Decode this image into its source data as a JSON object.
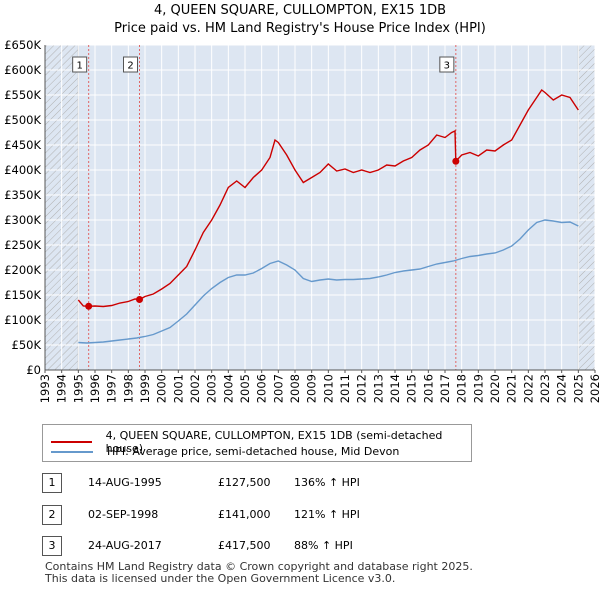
{
  "title_line1": "4, QUEEN SQUARE, CULLOMPTON, EX15 1DB",
  "title_line2": "Price paid vs. HM Land Registry's House Price Index (HPI)",
  "legend": {
    "property_label": "4, QUEEN SQUARE, CULLOMPTON, EX15 1DB (semi-detached house)",
    "hpi_label": "HPI: Average price, semi-detached house, Mid Devon"
  },
  "transactions": [
    {
      "num": "1",
      "date": "14-AUG-1995",
      "price": "£127,500",
      "hpi": "136% ↑ HPI"
    },
    {
      "num": "2",
      "date": "02-SEP-1998",
      "price": "£141,000",
      "hpi": "121% ↑ HPI"
    },
    {
      "num": "3",
      "date": "24-AUG-2017",
      "price": "£417,500",
      "hpi": "88% ↑ HPI"
    }
  ],
  "footer_line1": "Contains HM Land Registry data © Crown copyright and database right 2025.",
  "footer_line2": "This data is licensed under the Open Government Licence v3.0.",
  "colors": {
    "property": "#cc0000",
    "hpi": "#6699cc",
    "band": "#dde6f2",
    "grid": "#d0d0d0"
  },
  "chart_data": {
    "type": "line",
    "xlim": [
      1993,
      2026
    ],
    "ylim": [
      0,
      650000
    ],
    "y_ticks": [
      0,
      50000,
      100000,
      150000,
      200000,
      250000,
      300000,
      350000,
      400000,
      450000,
      500000,
      550000,
      600000,
      650000
    ],
    "y_tick_labels": [
      "£0",
      "£50K",
      "£100K",
      "£150K",
      "£200K",
      "£250K",
      "£300K",
      "£350K",
      "£400K",
      "£450K",
      "£500K",
      "£550K",
      "£600K",
      "£650K"
    ],
    "x_ticks": [
      1993,
      1994,
      1995,
      1996,
      1997,
      1998,
      1999,
      2000,
      2001,
      2002,
      2003,
      2004,
      2005,
      2006,
      2007,
      2008,
      2009,
      2010,
      2011,
      2012,
      2013,
      2014,
      2015,
      2016,
      2017,
      2018,
      2019,
      2020,
      2021,
      2022,
      2023,
      2024,
      2025,
      2026
    ],
    "x_tick_labels": [
      "1993",
      "1994",
      "1995",
      "1996",
      "1997",
      "1998",
      "1999",
      "2000",
      "2001",
      "2002",
      "2003",
      "2004",
      "2005",
      "2006",
      "2007",
      "2008",
      "2009",
      "2010",
      "2011",
      "2012",
      "2013",
      "2014",
      "2015",
      "2016",
      "2017",
      "2018",
      "2019",
      "2020",
      "2021",
      "2022",
      "2023",
      "2024",
      "2025",
      "2026"
    ],
    "hatched_ranges": [
      [
        1993,
        1995.0
      ],
      [
        2025.0,
        2026
      ]
    ],
    "sales": [
      {
        "label": "1",
        "x": 1995.62,
        "y": 127500
      },
      {
        "label": "2",
        "x": 1998.67,
        "y": 141000
      },
      {
        "label": "3",
        "x": 2017.65,
        "y": 417500
      }
    ],
    "series": [
      {
        "name": "4, QUEEN SQUARE, CULLOMPTON, EX15 1DB (semi-detached house)",
        "x": [
          1995.0,
          1995.3,
          1995.62,
          1996.0,
          1996.5,
          1997.0,
          1997.5,
          1998.0,
          1998.4,
          1998.67,
          1999.0,
          1999.5,
          2000.0,
          2000.5,
          2001.0,
          2001.5,
          2002.0,
          2002.5,
          2003.0,
          2003.5,
          2004.0,
          2004.5,
          2005.0,
          2005.5,
          2006.0,
          2006.5,
          2006.8,
          2007.0,
          2007.5,
          2008.0,
          2008.5,
          2009.0,
          2009.5,
          2010.0,
          2010.5,
          2011.0,
          2011.5,
          2012.0,
          2012.5,
          2013.0,
          2013.5,
          2014.0,
          2014.5,
          2015.0,
          2015.5,
          2016.0,
          2016.5,
          2017.0,
          2017.4,
          2017.6,
          2017.65,
          2018.0,
          2018.5,
          2019.0,
          2019.5,
          2020.0,
          2020.5,
          2021.0,
          2021.5,
          2022.0,
          2022.5,
          2022.8,
          2023.0,
          2023.5,
          2024.0,
          2024.5,
          2025.0
        ],
        "values": [
          140000,
          128000,
          127500,
          128000,
          127000,
          129000,
          134000,
          137000,
          142000,
          141000,
          147000,
          152000,
          162000,
          173000,
          190000,
          207000,
          240000,
          275000,
          300000,
          330000,
          365000,
          378000,
          365000,
          385000,
          400000,
          425000,
          460000,
          455000,
          430000,
          400000,
          375000,
          385000,
          395000,
          412000,
          398000,
          402000,
          395000,
          400000,
          395000,
          400000,
          410000,
          408000,
          418000,
          425000,
          440000,
          450000,
          470000,
          465000,
          475000,
          478000,
          417500,
          430000,
          435000,
          428000,
          440000,
          438000,
          450000,
          460000,
          490000,
          520000,
          545000,
          560000,
          555000,
          540000,
          550000,
          545000,
          520000
        ]
      },
      {
        "name": "HPI: Average price, semi-detached house, Mid Devon",
        "x": [
          1995.0,
          1995.5,
          1996.0,
          1996.5,
          1997.0,
          1997.5,
          1998.0,
          1998.5,
          1999.0,
          1999.5,
          2000.0,
          2000.5,
          2001.0,
          2001.5,
          2002.0,
          2002.5,
          2003.0,
          2003.5,
          2004.0,
          2004.5,
          2005.0,
          2005.5,
          2006.0,
          2006.5,
          2007.0,
          2007.5,
          2008.0,
          2008.5,
          2009.0,
          2009.5,
          2010.0,
          2010.5,
          2011.0,
          2011.5,
          2012.0,
          2012.5,
          2013.0,
          2013.5,
          2014.0,
          2014.5,
          2015.0,
          2015.5,
          2016.0,
          2016.5,
          2017.0,
          2017.5,
          2018.0,
          2018.5,
          2019.0,
          2019.5,
          2020.0,
          2020.5,
          2021.0,
          2021.5,
          2022.0,
          2022.5,
          2023.0,
          2023.5,
          2024.0,
          2024.5,
          2025.0
        ],
        "values": [
          55000,
          54000,
          55000,
          56000,
          58000,
          60000,
          62000,
          64000,
          67000,
          71000,
          78000,
          85000,
          98000,
          112000,
          130000,
          148000,
          163000,
          175000,
          185000,
          190000,
          190000,
          194000,
          203000,
          213000,
          218000,
          210000,
          200000,
          183000,
          177000,
          180000,
          182000,
          180000,
          181000,
          181000,
          182000,
          183000,
          186000,
          190000,
          195000,
          198000,
          200000,
          202000,
          207000,
          212000,
          215000,
          218000,
          223000,
          227000,
          229000,
          232000,
          234000,
          240000,
          248000,
          262000,
          280000,
          295000,
          300000,
          298000,
          295000,
          296000,
          288000
        ]
      }
    ]
  }
}
